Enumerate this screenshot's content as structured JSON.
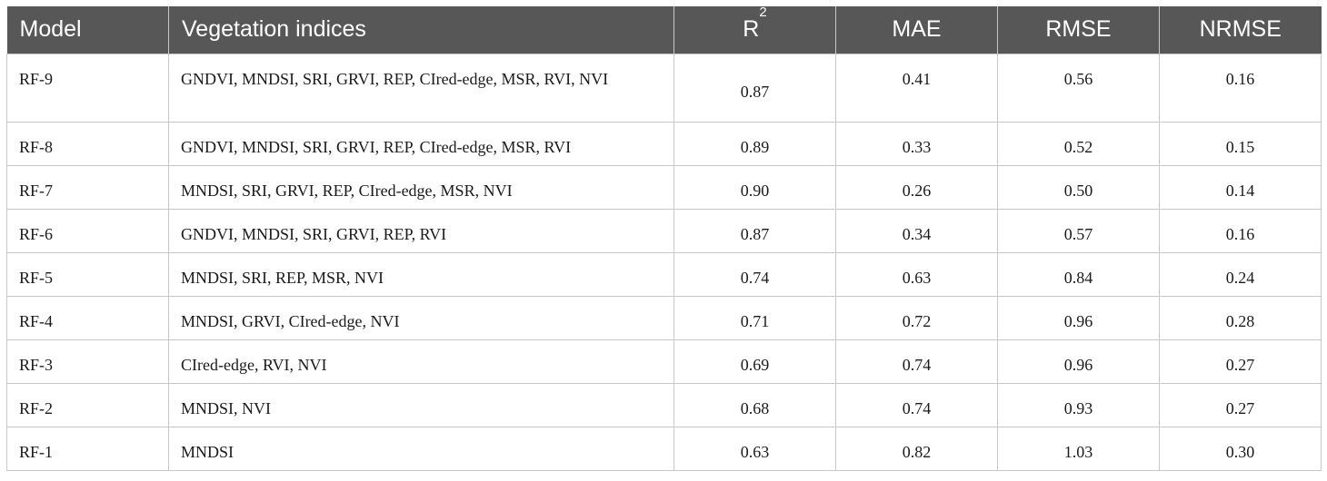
{
  "table": {
    "headers": {
      "model": "Model",
      "vegetation": "Vegetation indices",
      "r2_base": "R",
      "r2_sup": "2",
      "mae": "MAE",
      "rmse": "RMSE",
      "nrmse": "NRMSE"
    },
    "rows": [
      {
        "model": "RF-9",
        "veg": "GNDVI, MNDSI, SRI, GRVI, REP, CIred-edge, MSR, RVI, NVI",
        "r2": "0.87",
        "mae": "0.41",
        "rmse": "0.56",
        "nrmse": "0.16"
      },
      {
        "model": "RF-8",
        "veg": "GNDVI, MNDSI, SRI, GRVI, REP, CIred-edge, MSR, RVI",
        "r2": "0.89",
        "mae": "0.33",
        "rmse": "0.52",
        "nrmse": "0.15"
      },
      {
        "model": "RF-7",
        "veg": "MNDSI, SRI, GRVI, REP, CIred-edge, MSR, NVI",
        "r2": "0.90",
        "mae": "0.26",
        "rmse": "0.50",
        "nrmse": "0.14"
      },
      {
        "model": "RF-6",
        "veg": "GNDVI, MNDSI, SRI, GRVI, REP, RVI",
        "r2": "0.87",
        "mae": "0.34",
        "rmse": "0.57",
        "nrmse": "0.16"
      },
      {
        "model": "RF-5",
        "veg": "MNDSI, SRI, REP, MSR, NVI",
        "r2": "0.74",
        "mae": "0.63",
        "rmse": "0.84",
        "nrmse": "0.24"
      },
      {
        "model": "RF-4",
        "veg": "MNDSI, GRVI, CIred-edge, NVI",
        "r2": "0.71",
        "mae": "0.72",
        "rmse": "0.96",
        "nrmse": "0.28"
      },
      {
        "model": "RF-3",
        "veg": "CIred-edge, RVI, NVI",
        "r2": "0.69",
        "mae": "0.74",
        "rmse": "0.96",
        "nrmse": "0.27"
      },
      {
        "model": "RF-2",
        "veg": "MNDSI, NVI",
        "r2": "0.68",
        "mae": "0.74",
        "rmse": "0.93",
        "nrmse": "0.27"
      },
      {
        "model": "RF-1",
        "veg": "MNDSI",
        "r2": "0.63",
        "mae": "0.82",
        "rmse": "1.03",
        "nrmse": "0.30"
      }
    ]
  },
  "colors": {
    "header_bg": "#575757",
    "header_text": "#ffffff",
    "grid": "#c8c8c8"
  }
}
